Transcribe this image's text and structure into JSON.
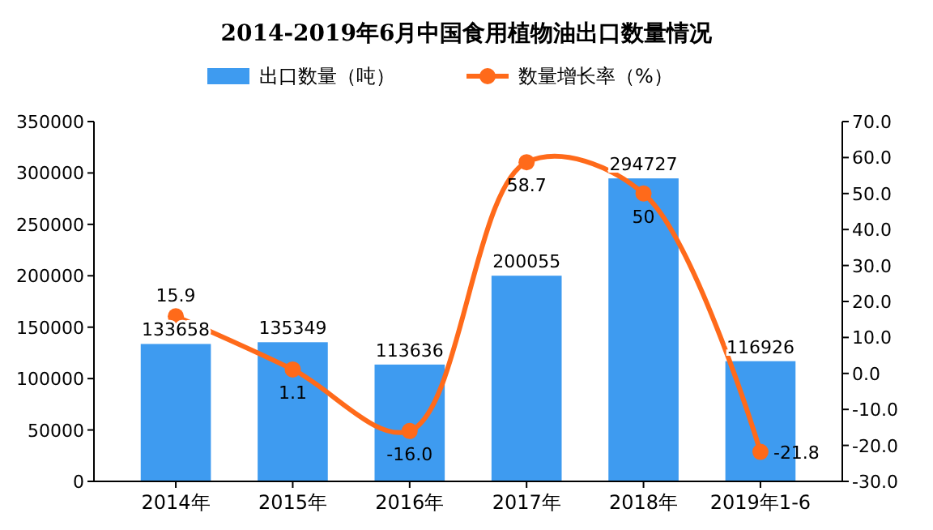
{
  "chart_data": {
    "type": "bar",
    "title": "2014-2019年6月中国食用植物油出口数量情况",
    "categories": [
      "2014年",
      "2015年",
      "2016年",
      "2017年",
      "2018年",
      "2019年1-6"
    ],
    "series": [
      {
        "name": "出口数量（吨）",
        "color": "#3e9bf0",
        "values": [
          133658,
          135349,
          113636,
          200055,
          294727,
          116926
        ]
      },
      {
        "name": "数量增长率（%）",
        "type": "line",
        "axis": "y2",
        "color": "#ff6a1a",
        "values": [
          15.9,
          1.1,
          -16.0,
          58.7,
          50,
          -21.8
        ],
        "value_labels": [
          "15.9",
          "1.1",
          "-16.0",
          "58.7",
          "50",
          "-21.8"
        ]
      }
    ],
    "ylim": [
      0,
      350000
    ],
    "yticks": [
      0,
      50000,
      100000,
      150000,
      200000,
      250000,
      300000,
      350000
    ],
    "y2lim": [
      -30,
      70
    ],
    "y2ticks": [
      {
        "value": -30,
        "label": "-30.0"
      },
      {
        "value": -20,
        "label": "-20.0"
      },
      {
        "value": -10,
        "label": "-10.0"
      },
      {
        "value": 0,
        "label": "0.0"
      },
      {
        "value": 10,
        "label": "10.0"
      },
      {
        "value": 20,
        "label": "20.0"
      },
      {
        "value": 30,
        "label": "30.0"
      },
      {
        "value": 40,
        "label": "40.0"
      },
      {
        "value": 50,
        "label": "50.0"
      },
      {
        "value": 60,
        "label": "60.0"
      },
      {
        "value": 70,
        "label": "70.0"
      }
    ],
    "data_labels": true,
    "legend": "top",
    "marker": "circle",
    "grid": false
  }
}
